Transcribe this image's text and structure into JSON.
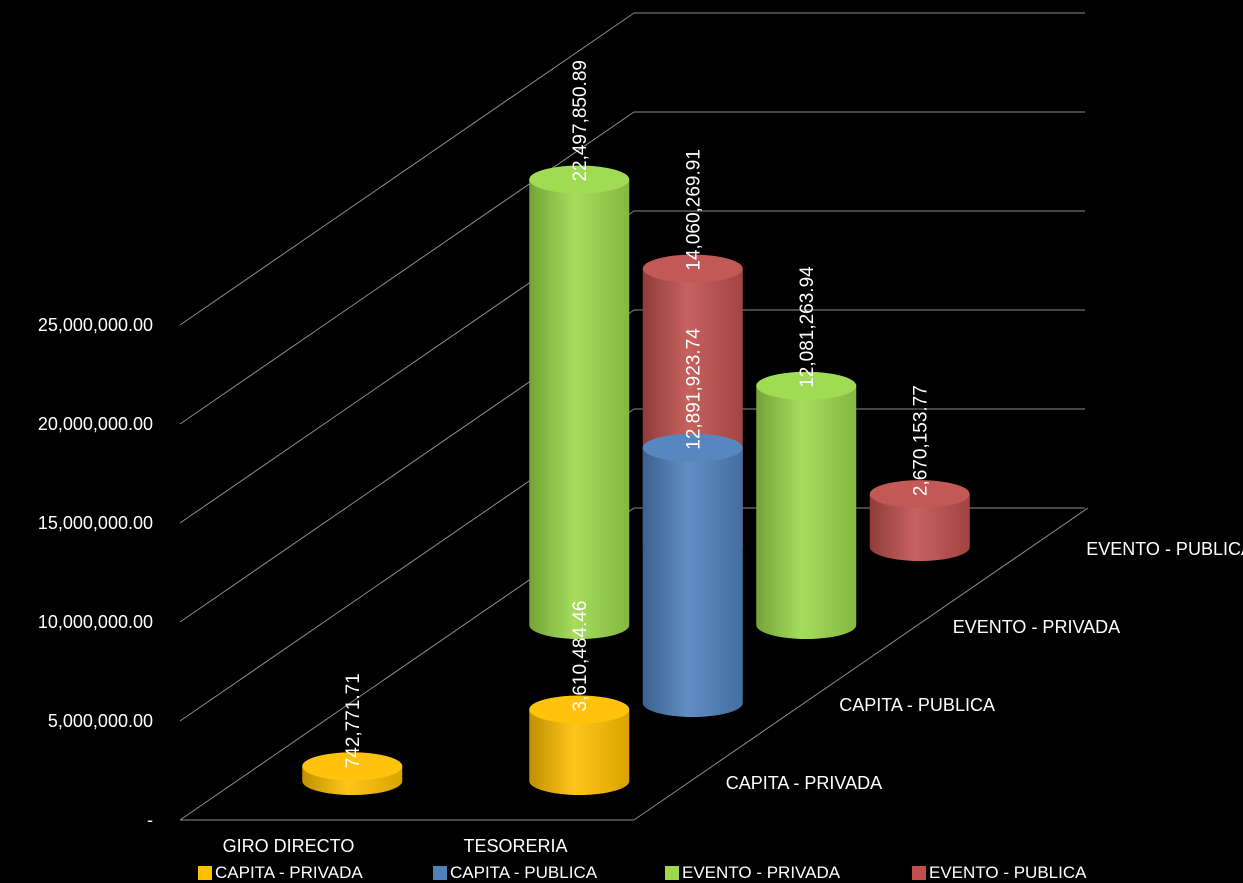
{
  "chart_data": {
    "type": "bar",
    "style": "3d-cylinder",
    "categories": [
      "GIRO DIRECTO",
      "TESORERIA"
    ],
    "series": [
      {
        "name": "CAPITA - PRIVADA",
        "color": "#FFC000",
        "values": [
          742771.71,
          3610484.46
        ],
        "labels": [
          "742,771.71",
          "3,610,484.46"
        ]
      },
      {
        "name": "CAPITA - PUBLICA",
        "color": "#4F81BD",
        "values": [
          null,
          12891923.74
        ],
        "labels": [
          "",
          "12,891,923.74"
        ]
      },
      {
        "name": "EVENTO - PRIVADA",
        "color": "#9BD94B",
        "values": [
          22497850.89,
          12081263.94
        ],
        "labels": [
          "22,497,850.89",
          "12,081,263.94"
        ]
      },
      {
        "name": "EVENTO - PUBLICA",
        "color": "#C0504D",
        "values": [
          14060269.91,
          2670153.77
        ],
        "labels": [
          "14,060,269.91",
          "2,670,153.77"
        ]
      }
    ],
    "y_ticks": [
      "-",
      "5,000,000.00",
      "10,000,000.00",
      "15,000,000.00",
      "20,000,000.00",
      "25,000,000.00"
    ],
    "y_tick_values": [
      0,
      5000000,
      10000000,
      15000000,
      20000000,
      25000000
    ],
    "ylim": [
      0,
      25000000
    ],
    "grid": true,
    "legend_position": "bottom",
    "background": "#000000"
  }
}
